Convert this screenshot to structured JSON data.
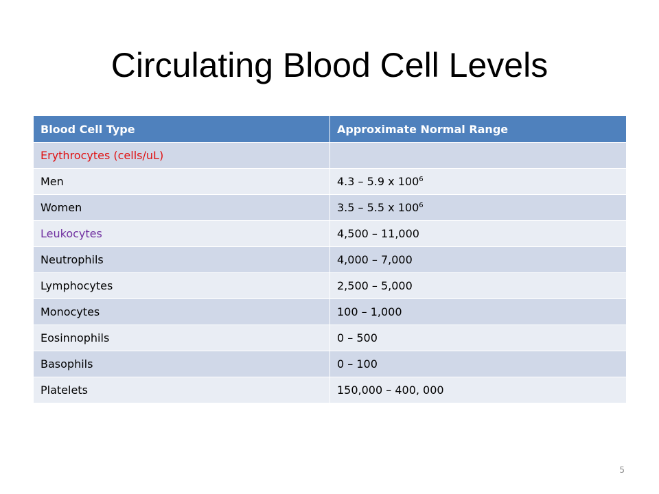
{
  "slide": {
    "title": "Circulating Blood Cell Levels",
    "page_number": "5"
  },
  "table": {
    "headers": [
      "Blood Cell Type",
      "Approximate Normal Range"
    ],
    "rows": [
      {
        "type": "Erythrocytes (cells/uL)",
        "range": "",
        "exponent": ""
      },
      {
        "type": "Men",
        "range": "4.3 – 5.9 x 100",
        "exponent": "6"
      },
      {
        "type": "Women",
        "range": "3.5 – 5.5 x 100",
        "exponent": "6"
      },
      {
        "type": "Leukocytes",
        "range": "4,500 – 11,000",
        "exponent": ""
      },
      {
        "type": "Neutrophils",
        "range": "4,000 – 7,000",
        "exponent": ""
      },
      {
        "type": "Lymphocytes",
        "range": "2,500 – 5,000",
        "exponent": ""
      },
      {
        "type": "Monocytes",
        "range": "100 – 1,000",
        "exponent": ""
      },
      {
        "type": "Eosinnophils",
        "range": "0 – 500",
        "exponent": ""
      },
      {
        "type": "Basophils",
        "range": "0 – 100",
        "exponent": ""
      },
      {
        "type": "Platelets",
        "range": "150,000 – 400, 000",
        "exponent": ""
      }
    ]
  },
  "colors": {
    "header_bg": "#4f81bd",
    "row_odd": "#d0d8e8",
    "row_even": "#e9edf4",
    "erythrocytes_text": "#e01010",
    "leukocytes_text": "#7030a0"
  }
}
